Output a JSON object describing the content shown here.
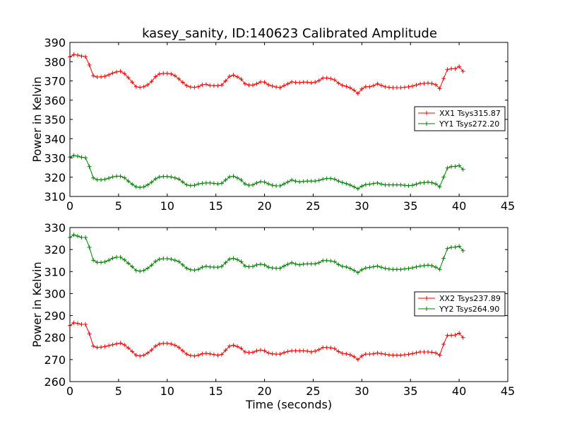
{
  "figure_title": "kasey_sanity, ID:140623 Calibrated Amplitude",
  "chart_data": [
    {
      "type": "line",
      "title": "kasey_sanity, ID:140623 Calibrated Amplitude",
      "xlabel": "",
      "ylabel": "Power in Kelvin",
      "xlim": [
        0,
        45
      ],
      "ylim": [
        310,
        390
      ],
      "x_ticks": [
        0,
        5,
        10,
        15,
        20,
        25,
        30,
        35,
        40,
        45
      ],
      "y_ticks": [
        310,
        320,
        330,
        340,
        350,
        360,
        370,
        380,
        390
      ],
      "grid": false,
      "legend_position": "center-right",
      "series": [
        {
          "name": "XX1 Tsys315.87",
          "color": "#ff0000",
          "knots": [
            [
              0.0,
              382.5
            ],
            [
              0.5,
              384
            ],
            [
              1.0,
              383
            ],
            [
              1.8,
              382.5
            ],
            [
              2.2,
              374
            ],
            [
              2.5,
              372
            ],
            [
              3.0,
              372
            ],
            [
              3.7,
              372.5
            ],
            [
              4.6,
              374.5
            ],
            [
              5.2,
              375
            ],
            [
              5.7,
              373.5
            ],
            [
              6.2,
              370.5
            ],
            [
              6.8,
              367
            ],
            [
              7.4,
              366.5
            ],
            [
              8.2,
              368.5
            ],
            [
              9.0,
              373.5
            ],
            [
              9.8,
              374
            ],
            [
              10.6,
              373.5
            ],
            [
              11.2,
              371
            ],
            [
              12.0,
              367.5
            ],
            [
              12.6,
              366.5
            ],
            [
              13.2,
              367
            ],
            [
              13.8,
              368.5
            ],
            [
              14.5,
              367.5
            ],
            [
              15.2,
              367.5
            ],
            [
              15.8,
              368
            ],
            [
              16.2,
              372
            ],
            [
              16.8,
              373
            ],
            [
              17.5,
              371.5
            ],
            [
              18.0,
              368.5
            ],
            [
              18.6,
              367.5
            ],
            [
              19.2,
              368.5
            ],
            [
              19.8,
              370
            ],
            [
              20.4,
              368
            ],
            [
              21.0,
              367
            ],
            [
              21.6,
              366.5
            ],
            [
              22.2,
              368
            ],
            [
              22.8,
              369.5
            ],
            [
              23.5,
              369
            ],
            [
              24.2,
              369.5
            ],
            [
              24.8,
              369
            ],
            [
              25.4,
              369.5
            ],
            [
              26.0,
              371.5
            ],
            [
              26.6,
              371.5
            ],
            [
              27.2,
              370.5
            ],
            [
              27.8,
              368
            ],
            [
              28.5,
              367
            ],
            [
              29.0,
              366
            ],
            [
              29.6,
              363.5
            ],
            [
              30.2,
              367
            ],
            [
              31.0,
              367
            ],
            [
              31.6,
              368.5
            ],
            [
              32.3,
              367
            ],
            [
              33.0,
              366.5
            ],
            [
              34.0,
              366.5
            ],
            [
              35.0,
              367
            ],
            [
              36.0,
              368.5
            ],
            [
              37.0,
              369
            ],
            [
              37.6,
              368
            ],
            [
              38.0,
              366
            ],
            [
              38.2,
              367
            ],
            [
              38.6,
              375.5
            ],
            [
              39.0,
              376.5
            ],
            [
              39.5,
              376
            ],
            [
              40.0,
              377.5
            ],
            [
              40.4,
              375
            ]
          ]
        },
        {
          "name": "YY1 Tsys272.20",
          "color": "#008000",
          "knots": [
            [
              0.0,
              330.5
            ],
            [
              0.5,
              331.5
            ],
            [
              1.0,
              330.5
            ],
            [
              1.8,
              330
            ],
            [
              2.2,
              321
            ],
            [
              2.5,
              319
            ],
            [
              3.0,
              318.5
            ],
            [
              3.7,
              319
            ],
            [
              4.6,
              320.5
            ],
            [
              5.2,
              320.5
            ],
            [
              5.7,
              319.5
            ],
            [
              6.2,
              317
            ],
            [
              6.8,
              315
            ],
            [
              7.4,
              314.5
            ],
            [
              8.2,
              316.5
            ],
            [
              9.0,
              320
            ],
            [
              9.8,
              320.5
            ],
            [
              10.6,
              320
            ],
            [
              11.2,
              319
            ],
            [
              12.0,
              316
            ],
            [
              12.6,
              315.5
            ],
            [
              13.2,
              316.5
            ],
            [
              13.8,
              317
            ],
            [
              14.5,
              317
            ],
            [
              15.2,
              316.5
            ],
            [
              15.8,
              317
            ],
            [
              16.2,
              320
            ],
            [
              16.8,
              320.5
            ],
            [
              17.5,
              319
            ],
            [
              18.0,
              316.5
            ],
            [
              18.6,
              315.5
            ],
            [
              19.2,
              317
            ],
            [
              19.8,
              318
            ],
            [
              20.4,
              316.5
            ],
            [
              21.0,
              315.5
            ],
            [
              21.6,
              315.5
            ],
            [
              22.2,
              317
            ],
            [
              22.8,
              318.5
            ],
            [
              23.5,
              317.5
            ],
            [
              24.2,
              318
            ],
            [
              24.8,
              318
            ],
            [
              25.4,
              318
            ],
            [
              26.0,
              319
            ],
            [
              26.6,
              319.5
            ],
            [
              27.2,
              319
            ],
            [
              27.8,
              317.5
            ],
            [
              28.5,
              316.5
            ],
            [
              29.0,
              315.5
            ],
            [
              29.6,
              314
            ],
            [
              30.2,
              316
            ],
            [
              31.0,
              316.5
            ],
            [
              31.6,
              317
            ],
            [
              32.3,
              316
            ],
            [
              33.0,
              316
            ],
            [
              34.0,
              316
            ],
            [
              35.0,
              315.5
            ],
            [
              36.0,
              317
            ],
            [
              37.0,
              317.5
            ],
            [
              37.6,
              316.5
            ],
            [
              38.0,
              315
            ],
            [
              38.2,
              316
            ],
            [
              38.6,
              324
            ],
            [
              39.0,
              325.5
            ],
            [
              39.5,
              325.5
            ],
            [
              40.0,
              326
            ],
            [
              40.4,
              324
            ]
          ]
        }
      ]
    },
    {
      "type": "line",
      "title": "",
      "xlabel": "Time (seconds)",
      "ylabel": "Power in Kelvin",
      "xlim": [
        0,
        45
      ],
      "ylim": [
        260,
        330
      ],
      "x_ticks": [
        0,
        5,
        10,
        15,
        20,
        25,
        30,
        35,
        40,
        45
      ],
      "y_ticks": [
        260,
        270,
        280,
        290,
        300,
        310,
        320,
        330
      ],
      "grid": false,
      "legend_position": "center-right",
      "series": [
        {
          "name": "XX2 Tsys237.89",
          "color": "#ff0000",
          "knots": [
            [
              0.0,
              285.5
            ],
            [
              0.5,
              287
            ],
            [
              1.0,
              286
            ],
            [
              1.8,
              286
            ],
            [
              2.2,
              277.5
            ],
            [
              2.5,
              275.5
            ],
            [
              3.0,
              275.5
            ],
            [
              3.7,
              276
            ],
            [
              4.6,
              277
            ],
            [
              5.2,
              277.5
            ],
            [
              5.7,
              276.5
            ],
            [
              6.2,
              274.5
            ],
            [
              6.8,
              272
            ],
            [
              7.4,
              271.5
            ],
            [
              8.2,
              273.5
            ],
            [
              9.0,
              277
            ],
            [
              9.8,
              277.5
            ],
            [
              10.6,
              277
            ],
            [
              11.2,
              275.5
            ],
            [
              12.0,
              272.5
            ],
            [
              12.6,
              271.5
            ],
            [
              13.2,
              272
            ],
            [
              13.8,
              273
            ],
            [
              14.5,
              272.5
            ],
            [
              15.2,
              272
            ],
            [
              15.8,
              272.5
            ],
            [
              16.2,
              276
            ],
            [
              16.8,
              276.5
            ],
            [
              17.5,
              275.5
            ],
            [
              18.0,
              273.5
            ],
            [
              18.6,
              273
            ],
            [
              19.2,
              274
            ],
            [
              19.8,
              274.5
            ],
            [
              20.4,
              273
            ],
            [
              21.0,
              272.5
            ],
            [
              21.6,
              272.5
            ],
            [
              22.2,
              273.5
            ],
            [
              22.8,
              274
            ],
            [
              23.5,
              274
            ],
            [
              24.2,
              274
            ],
            [
              24.8,
              273.5
            ],
            [
              25.4,
              274
            ],
            [
              26.0,
              275.5
            ],
            [
              26.6,
              275.5
            ],
            [
              27.2,
              275
            ],
            [
              27.8,
              273
            ],
            [
              28.5,
              272.5
            ],
            [
              29.0,
              272
            ],
            [
              29.6,
              270
            ],
            [
              30.2,
              272.5
            ],
            [
              31.0,
              272.5
            ],
            [
              31.6,
              273
            ],
            [
              32.3,
              272.5
            ],
            [
              33.0,
              272
            ],
            [
              34.0,
              272
            ],
            [
              35.0,
              272.5
            ],
            [
              36.0,
              273.5
            ],
            [
              37.0,
              273.5
            ],
            [
              37.6,
              273
            ],
            [
              38.0,
              272
            ],
            [
              38.2,
              273
            ],
            [
              38.6,
              281
            ],
            [
              39.0,
              281
            ],
            [
              39.5,
              281
            ],
            [
              40.0,
              282
            ],
            [
              40.4,
              280
            ]
          ]
        },
        {
          "name": "YY2 Tsys264.90",
          "color": "#008000",
          "knots": [
            [
              0.0,
              325.5
            ],
            [
              0.5,
              327
            ],
            [
              1.0,
              325.5
            ],
            [
              1.8,
              325.5
            ],
            [
              2.2,
              316.5
            ],
            [
              2.5,
              314.5
            ],
            [
              3.0,
              314
            ],
            [
              3.7,
              314.5
            ],
            [
              4.6,
              316.5
            ],
            [
              5.2,
              316.5
            ],
            [
              5.7,
              315
            ],
            [
              6.2,
              313
            ],
            [
              6.8,
              310.5
            ],
            [
              7.4,
              310
            ],
            [
              8.2,
              312
            ],
            [
              9.0,
              315.5
            ],
            [
              9.8,
              316
            ],
            [
              10.6,
              315.5
            ],
            [
              11.2,
              314.5
            ],
            [
              12.0,
              311.5
            ],
            [
              12.6,
              310.5
            ],
            [
              13.2,
              311
            ],
            [
              13.8,
              312.5
            ],
            [
              14.5,
              312
            ],
            [
              15.2,
              312
            ],
            [
              15.8,
              312.5
            ],
            [
              16.2,
              315.5
            ],
            [
              16.8,
              316
            ],
            [
              17.5,
              315
            ],
            [
              18.0,
              312.5
            ],
            [
              18.6,
              312
            ],
            [
              19.2,
              313
            ],
            [
              19.8,
              313.5
            ],
            [
              20.4,
              312
            ],
            [
              21.0,
              311.5
            ],
            [
              21.6,
              311.5
            ],
            [
              22.2,
              313
            ],
            [
              22.8,
              314
            ],
            [
              23.5,
              313
            ],
            [
              24.2,
              313.5
            ],
            [
              24.8,
              313.5
            ],
            [
              25.4,
              313.5
            ],
            [
              26.0,
              315
            ],
            [
              26.6,
              315
            ],
            [
              27.2,
              314.5
            ],
            [
              27.8,
              312.5
            ],
            [
              28.5,
              312
            ],
            [
              29.0,
              311
            ],
            [
              29.6,
              309.5
            ],
            [
              30.2,
              311.5
            ],
            [
              31.0,
              312
            ],
            [
              31.6,
              312.5
            ],
            [
              32.3,
              311.5
            ],
            [
              33.0,
              311
            ],
            [
              34.0,
              311
            ],
            [
              35.0,
              311.5
            ],
            [
              36.0,
              312.5
            ],
            [
              37.0,
              313
            ],
            [
              37.6,
              312
            ],
            [
              38.0,
              311
            ],
            [
              38.2,
              312
            ],
            [
              38.6,
              320
            ],
            [
              39.0,
              321
            ],
            [
              39.5,
              321
            ],
            [
              40.0,
              321.5
            ],
            [
              40.4,
              319.5
            ]
          ]
        }
      ]
    }
  ]
}
